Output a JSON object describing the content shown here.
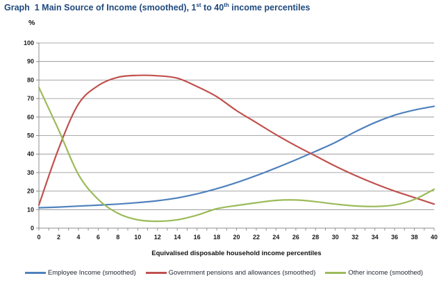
{
  "header": {
    "title_p1": "Graph  1 Main Source of Income (smoothed), 1",
    "title_sup1": "st",
    "title_p2": " to 40",
    "title_sup2": "th",
    "title_p3": " income percentiles"
  },
  "chart_data": {
    "type": "line",
    "title": "Graph 1 Main Source of Income (smoothed), 1st to 40th income percentiles",
    "y_unit_label": "%",
    "xlabel": "Equivalised disposable household income percentiles",
    "ylim": [
      0,
      100
    ],
    "yticks": [
      0,
      10,
      20,
      30,
      40,
      50,
      60,
      70,
      80,
      90,
      100
    ],
    "xlim": [
      0,
      40
    ],
    "xticks": [
      0,
      2,
      4,
      6,
      8,
      10,
      12,
      14,
      16,
      18,
      20,
      22,
      24,
      26,
      28,
      30,
      32,
      34,
      36,
      38,
      40
    ],
    "xtick_minor_step": 1,
    "grid": "horizontal",
    "legend_position": "bottom",
    "x": [
      0,
      2,
      4,
      6,
      8,
      10,
      12,
      14,
      16,
      18,
      20,
      22,
      24,
      26,
      28,
      30,
      32,
      34,
      36,
      38,
      40
    ],
    "series": [
      {
        "name": "Employee Income (smoothed)",
        "color": "#4F81BD",
        "values": [
          11,
          11.4,
          11.9,
          12.4,
          13,
          13.8,
          14.8,
          16.3,
          18.5,
          21.3,
          24.6,
          28.4,
          32.5,
          36.9,
          41.5,
          46.3,
          52,
          57,
          61,
          63.8,
          65.8
        ]
      },
      {
        "name": "Government pensions and allowances (smoothed)",
        "color": "#C0504D",
        "values": [
          12.5,
          43,
          67,
          77,
          81.5,
          82.5,
          82.3,
          81,
          76.5,
          71,
          63.5,
          57,
          50.5,
          44.5,
          39,
          33.5,
          28.5,
          24,
          20,
          16.5,
          13
        ]
      },
      {
        "name": "Other income (smoothed)",
        "color": "#9BBB59",
        "values": [
          76,
          53,
          29,
          15.5,
          8,
          4.5,
          3.7,
          4.5,
          7,
          10.5,
          12.2,
          13.7,
          15,
          15.2,
          14.3,
          13,
          12,
          11.7,
          12.5,
          15.5,
          21
        ]
      }
    ],
    "axis_color": "#8C8C8C",
    "grid_color": "#8C8C8C",
    "tick_label_color": "#1a1a1a"
  }
}
